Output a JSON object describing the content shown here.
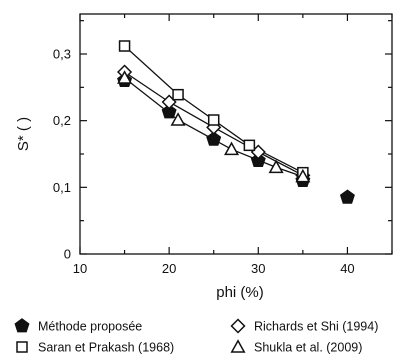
{
  "chart_data": {
    "type": "line",
    "xlabel": "phi (%)",
    "ylabel": "S* ( )",
    "xlim": [
      10,
      45
    ],
    "ylim": [
      0,
      0.36
    ],
    "x_ticks": [
      10,
      20,
      30,
      40
    ],
    "y_ticks": [
      0,
      0.1,
      0.2,
      0.3
    ],
    "x_tick_labels": [
      "10",
      "20",
      "30",
      "40"
    ],
    "y_tick_labels": [
      "0",
      "0,1",
      "0,2",
      "0,3"
    ],
    "grid": false,
    "legend_position": "bottom",
    "series": [
      {
        "name": "Méthode proposée",
        "marker": "pentagon-filled",
        "line": false,
        "x": [
          15,
          20,
          25,
          30,
          35,
          40
        ],
        "y": [
          0.26,
          0.213,
          0.172,
          0.14,
          0.11,
          0.085
        ]
      },
      {
        "name": "Richards et Shi (1994)",
        "marker": "diamond-open",
        "line": true,
        "x": [
          15,
          20,
          25,
          30,
          35
        ],
        "y": [
          0.273,
          0.228,
          0.19,
          0.153,
          0.118
        ]
      },
      {
        "name": "Saran et Prakash (1968)",
        "marker": "square-open",
        "line": true,
        "x": [
          15,
          21,
          25,
          29,
          35
        ],
        "y": [
          0.312,
          0.239,
          0.201,
          0.163,
          0.122
        ]
      },
      {
        "name": "Shukla et al. (2009)",
        "marker": "triangle-open",
        "line": true,
        "x": [
          15,
          21,
          27,
          32,
          35
        ],
        "y": [
          0.264,
          0.201,
          0.157,
          0.13,
          0.116
        ]
      }
    ]
  },
  "legend": {
    "items": [
      {
        "label": "Méthode proposée",
        "marker": "pentagon-filled"
      },
      {
        "label": "Richards et Shi (1994)",
        "marker": "diamond-open"
      },
      {
        "label": "Saran et Prakash (1968)",
        "marker": "square-open"
      },
      {
        "label": "Shukla et al. (2009)",
        "marker": "triangle-open"
      }
    ]
  },
  "colors": {
    "ink": "#111111",
    "background": "#ffffff"
  }
}
